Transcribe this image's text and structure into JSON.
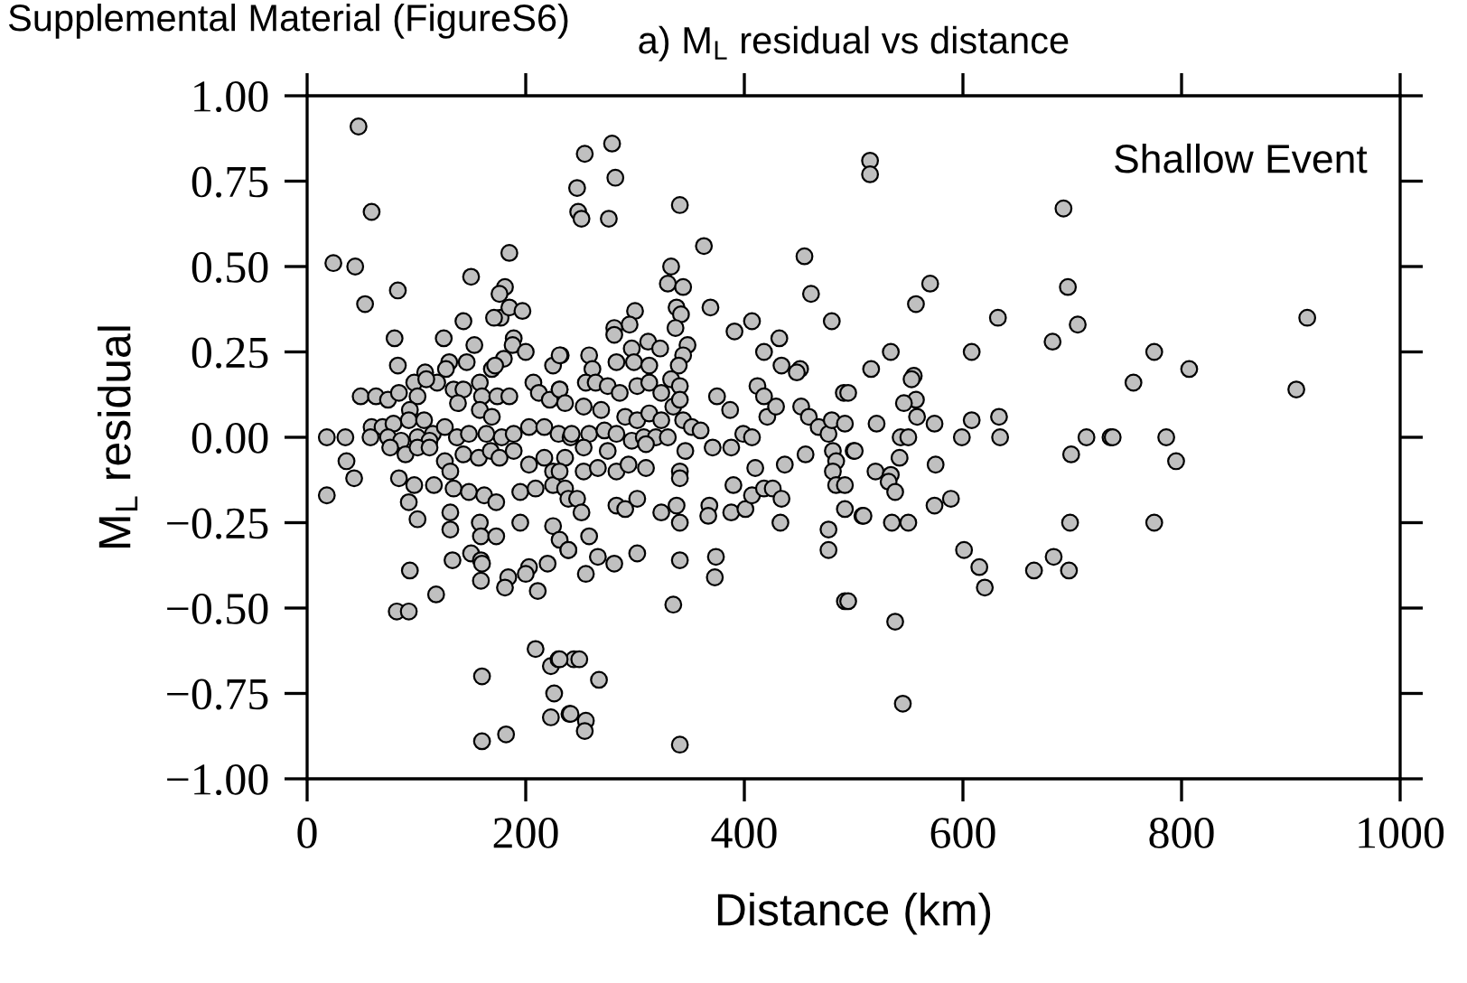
{
  "chart_data": {
    "type": "scatter",
    "title": "a) M$_{L}$ residual vs distance",
    "xlabel": "Distance (km)",
    "ylabel": "M$_{L}$ residual",
    "annotations": [
      "Supplemental Material (FigureS6)",
      "Shallow Event"
    ],
    "xlim": [
      0,
      1000
    ],
    "xticks": [
      0,
      200,
      400,
      600,
      800,
      1000
    ],
    "ylim": [
      -1.0,
      1.0
    ],
    "yticks": [
      {
        "value": 1.0,
        "label": "1.00"
      },
      {
        "value": 0.75,
        "label": "0.75"
      },
      {
        "value": 0.5,
        "label": "0.50"
      },
      {
        "value": 0.25,
        "label": "0.25"
      },
      {
        "value": 0.0,
        "label": "0.00"
      },
      {
        "value": -0.25,
        "label": "−0.25"
      },
      {
        "value": -0.5,
        "label": "−0.50"
      },
      {
        "value": -0.75,
        "label": "−0.75"
      },
      {
        "value": -1.0,
        "label": "−1.00"
      }
    ],
    "grid": false,
    "legend": false,
    "marker": "circle",
    "series": [
      {
        "color": "#c0c0c0",
        "x": [
          47,
          59,
          24,
          44,
          53,
          83,
          185,
          150,
          181,
          176,
          177,
          171,
          185,
          197,
          80,
          125,
          143,
          153,
          189,
          188,
          200,
          180,
          83,
          130,
          127,
          146,
          108,
          119,
          169,
          172,
          49,
          63,
          74,
          84,
          98,
          101,
          109,
          94,
          134,
          143,
          138,
          158,
          160,
          158,
          174,
          185,
          169,
          207,
          212,
          222,
          231,
          225,
          232,
          59,
          69,
          79,
          93,
          107,
          115,
          126,
          18,
          35,
          58,
          74,
          86,
          101,
          112,
          137,
          148,
          164,
          178,
          189,
          203,
          217,
          230,
          241,
          36,
          43,
          18,
          76,
          90,
          101,
          112,
          126,
          131,
          143,
          157,
          168,
          176,
          189,
          203,
          217,
          225,
          236,
          84,
          98,
          116,
          134,
          148,
          162,
          173,
          195,
          209,
          225,
          93,
          101,
          131,
          131,
          158,
          159,
          173,
          195,
          225,
          231,
          239,
          133,
          150,
          159,
          160,
          184,
          203,
          200,
          220,
          181,
          211,
          159,
          94,
          118,
          82,
          93,
          209,
          223,
          230,
          244,
          226,
          223,
          240,
          160,
          160,
          182,
          254,
          279,
          282,
          247,
          248,
          251,
          276,
          341,
          363,
          333,
          330,
          344,
          338,
          342,
          337,
          369,
          300,
          295,
          281,
          281,
          312,
          297,
          323,
          299,
          313,
          348,
          344,
          340,
          258,
          261,
          283,
          255,
          264,
          275,
          286,
          302,
          313,
          324,
          333,
          341,
          231,
          231,
          236,
          253,
          269,
          291,
          302,
          313,
          324,
          335,
          341,
          242,
          258,
          272,
          283,
          297,
          308,
          319,
          330,
          344,
          352,
          360,
          371,
          253,
          275,
          310,
          346,
          231,
          236,
          239,
          253,
          266,
          283,
          294,
          310,
          341,
          341,
          247,
          251,
          283,
          291,
          302,
          324,
          338,
          341,
          258,
          239,
          266,
          281,
          302,
          255,
          341,
          374,
          373,
          335,
          368,
          367,
          388,
          401,
          407,
          390,
          410,
          418,
          426,
          434,
          433,
          388,
          399,
          407,
          421,
          429,
          412,
          418,
          434,
          451,
          448,
          432,
          418,
          407,
          391,
          375,
          387,
          437,
          456,
          452,
          459,
          468,
          477,
          480,
          492,
          491,
          481,
          484,
          481,
          484,
          492,
          500,
          508,
          492,
          477,
          477,
          492,
          480,
          461,
          455,
          231,
          249,
          267,
          241,
          255,
          254,
          341,
          515,
          515,
          692,
          570,
          557,
          632,
          696,
          705,
          682,
          915,
          534,
          516,
          608,
          775,
          807,
          756,
          905,
          555,
          553,
          557,
          546,
          558,
          574,
          521,
          495,
          608,
          633,
          599,
          634,
          713,
          735,
          737,
          786,
          543,
          550,
          501,
          542,
          699,
          795,
          575,
          520,
          534,
          532,
          538,
          509,
          574,
          589,
          535,
          550,
          698,
          775,
          601,
          615,
          620,
          665,
          683,
          697,
          538,
          545,
          495
        ],
        "values": [
          0.91,
          0.66,
          0.51,
          0.5,
          0.39,
          0.43,
          0.54,
          0.47,
          0.44,
          0.42,
          0.35,
          0.35,
          0.38,
          0.37,
          0.29,
          0.29,
          0.34,
          0.27,
          0.29,
          0.27,
          0.25,
          0.23,
          0.21,
          0.22,
          0.2,
          0.22,
          0.19,
          0.16,
          0.2,
          0.21,
          0.12,
          0.12,
          0.11,
          0.13,
          0.16,
          0.12,
          0.17,
          0.08,
          0.14,
          0.14,
          0.1,
          0.16,
          0.12,
          0.08,
          0.12,
          0.12,
          0.06,
          0.16,
          0.13,
          0.11,
          0.14,
          0.21,
          0.24,
          0.03,
          0.03,
          0.04,
          0.05,
          0.05,
          0.01,
          0.03,
          0.0,
          0.0,
          0.0,
          0.0,
          -0.01,
          0.0,
          -0.01,
          0.0,
          0.01,
          0.01,
          0.0,
          0.01,
          0.03,
          0.03,
          0.01,
          0.0,
          -0.07,
          -0.12,
          -0.17,
          -0.03,
          -0.05,
          -0.03,
          -0.03,
          -0.07,
          -0.1,
          -0.05,
          -0.06,
          -0.04,
          -0.06,
          -0.04,
          -0.08,
          -0.06,
          -0.1,
          -0.06,
          -0.12,
          -0.14,
          -0.14,
          -0.15,
          -0.16,
          -0.17,
          -0.19,
          -0.16,
          -0.15,
          -0.14,
          -0.19,
          -0.24,
          -0.22,
          -0.27,
          -0.25,
          -0.29,
          -0.29,
          -0.25,
          -0.26,
          -0.3,
          -0.33,
          -0.36,
          -0.34,
          -0.36,
          -0.37,
          -0.41,
          -0.38,
          -0.4,
          -0.37,
          -0.44,
          -0.45,
          -0.42,
          -0.39,
          -0.46,
          -0.51,
          -0.51,
          -0.62,
          -0.67,
          -0.65,
          -0.65,
          -0.75,
          -0.82,
          -0.81,
          -0.7,
          -0.89,
          -0.87,
          0.83,
          0.86,
          0.76,
          0.73,
          0.66,
          0.64,
          0.64,
          0.68,
          0.56,
          0.5,
          0.45,
          0.44,
          0.38,
          0.36,
          0.32,
          0.38,
          0.37,
          0.33,
          0.32,
          0.3,
          0.28,
          0.26,
          0.26,
          0.22,
          0.21,
          0.27,
          0.24,
          0.21,
          0.24,
          0.2,
          0.22,
          0.16,
          0.16,
          0.15,
          0.13,
          0.15,
          0.16,
          0.13,
          0.17,
          0.15,
          0.24,
          0.14,
          0.1,
          0.09,
          0.08,
          0.06,
          0.05,
          0.07,
          0.05,
          0.09,
          0.11,
          0.01,
          0.01,
          0.02,
          0.01,
          -0.01,
          0.0,
          0.0,
          0.0,
          0.05,
          0.03,
          0.02,
          -0.03,
          -0.03,
          -0.04,
          -0.02,
          -0.04,
          -0.1,
          -0.15,
          -0.18,
          -0.1,
          -0.09,
          -0.1,
          -0.08,
          -0.09,
          -0.1,
          -0.12,
          -0.18,
          -0.22,
          -0.2,
          -0.21,
          -0.18,
          -0.22,
          -0.2,
          -0.25,
          -0.29,
          -0.33,
          -0.35,
          -0.37,
          -0.34,
          -0.4,
          -0.36,
          -0.35,
          -0.41,
          -0.49,
          -0.2,
          -0.23,
          -0.22,
          -0.21,
          -0.17,
          -0.14,
          -0.09,
          -0.15,
          -0.15,
          -0.18,
          -0.25,
          -0.03,
          0.01,
          0.0,
          0.06,
          0.09,
          0.15,
          0.12,
          0.21,
          0.2,
          0.19,
          0.29,
          0.25,
          0.34,
          0.31,
          0.12,
          0.08,
          -0.08,
          -0.05,
          0.09,
          0.06,
          0.03,
          0.01,
          0.05,
          0.04,
          0.13,
          -0.04,
          -0.07,
          -0.1,
          -0.14,
          -0.14,
          -0.04,
          -0.23,
          -0.21,
          -0.27,
          -0.33,
          -0.48,
          0.34,
          0.42,
          0.53,
          -0.65,
          -0.65,
          -0.71,
          -0.81,
          -0.83,
          -0.86,
          -0.9,
          0.81,
          0.77,
          0.67,
          0.45,
          0.39,
          0.35,
          0.44,
          0.33,
          0.28,
          0.35,
          0.25,
          0.2,
          0.25,
          0.25,
          0.2,
          0.16,
          0.14,
          0.18,
          0.17,
          0.11,
          0.1,
          0.06,
          0.04,
          0.04,
          0.13,
          0.05,
          0.06,
          0.0,
          0.0,
          0.0,
          0.0,
          0.0,
          0.0,
          0.0,
          0.0,
          -0.04,
          -0.06,
          -0.05,
          -0.07,
          -0.08,
          -0.1,
          -0.11,
          -0.13,
          -0.16,
          -0.23,
          -0.2,
          -0.18,
          -0.25,
          -0.25,
          -0.25,
          -0.25,
          -0.33,
          -0.38,
          -0.44,
          -0.39,
          -0.35,
          -0.39,
          -0.54,
          -0.78,
          -0.48
        ]
      }
    ]
  }
}
